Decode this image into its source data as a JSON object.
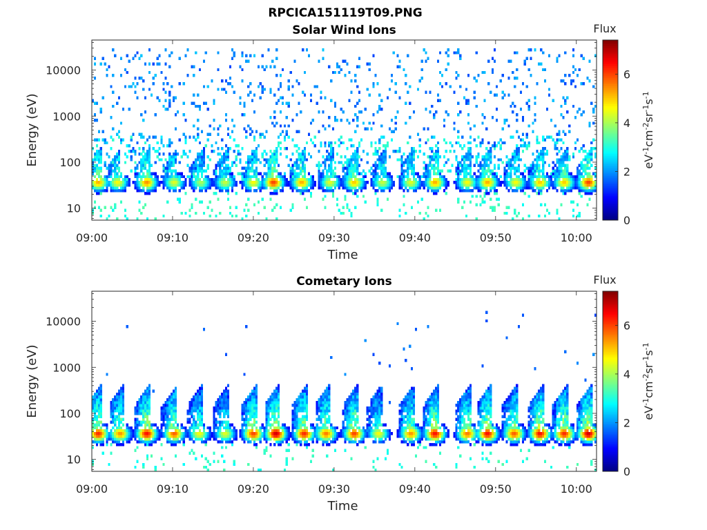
{
  "figure_title": "RPCICA151119T09.PNG",
  "chart_data": [
    {
      "type": "heatmap",
      "title": "Solar Wind Ions",
      "xlabel": "Time",
      "ylabel": "Energy (eV)",
      "x_ticks": [
        "09:00",
        "09:10",
        "09:20",
        "09:30",
        "09:40",
        "09:50",
        "10:00"
      ],
      "x_range_minutes": [
        0,
        62.5
      ],
      "y_scale": "log",
      "y_ticks": [
        "10",
        "100",
        "1000",
        "10000"
      ],
      "y_range": [
        5.5,
        45000
      ],
      "colorbar": {
        "label": "Flux",
        "unit": "eV-1cm-2sr-1s-1",
        "ticks": [
          "0",
          "2",
          "4",
          "6"
        ],
        "range": [
          0,
          7.4
        ],
        "colormap": "jet"
      },
      "peaks": [
        {
          "t": 0.8,
          "amp": 5.2
        },
        {
          "t": 3.2,
          "amp": 4.6
        },
        {
          "t": 6.8,
          "amp": 5.4
        },
        {
          "t": 10.2,
          "amp": 4.4
        },
        {
          "t": 13.5,
          "amp": 4.0
        },
        {
          "t": 16.5,
          "amp": 4.2
        },
        {
          "t": 20.0,
          "amp": 4.6
        },
        {
          "t": 22.5,
          "amp": 6.0
        },
        {
          "t": 26.0,
          "amp": 5.2
        },
        {
          "t": 29.5,
          "amp": 4.4
        },
        {
          "t": 32.5,
          "amp": 5.0
        },
        {
          "t": 36.0,
          "amp": 4.2
        },
        {
          "t": 39.5,
          "amp": 4.4
        },
        {
          "t": 42.5,
          "amp": 5.2
        },
        {
          "t": 46.5,
          "amp": 4.6
        },
        {
          "t": 49.0,
          "amp": 5.2
        },
        {
          "t": 52.5,
          "amp": 4.6
        },
        {
          "t": 55.5,
          "amp": 5.0
        },
        {
          "t": 58.5,
          "amp": 5.0
        },
        {
          "t": 61.5,
          "amp": 6.0
        }
      ],
      "background": "scattered low-flux counts 100–20000 eV",
      "seed": 7
    },
    {
      "type": "heatmap",
      "title": "Cometary Ions",
      "xlabel": "Time",
      "ylabel": "Energy (eV)",
      "x_ticks": [
        "09:00",
        "09:10",
        "09:20",
        "09:30",
        "09:40",
        "09:50",
        "10:00"
      ],
      "x_range_minutes": [
        0,
        62.5
      ],
      "y_scale": "log",
      "y_ticks": [
        "10",
        "100",
        "1000",
        "10000"
      ],
      "y_range": [
        5.5,
        45000
      ],
      "colorbar": {
        "label": "Flux",
        "unit": "eV-1cm-2sr-1s-1",
        "ticks": [
          "0",
          "2",
          "4",
          "6"
        ],
        "range": [
          0,
          7.4
        ],
        "colormap": "jet"
      },
      "peaks": [
        {
          "t": 0.8,
          "amp": 6.2
        },
        {
          "t": 3.5,
          "amp": 5.4
        },
        {
          "t": 6.8,
          "amp": 6.4
        },
        {
          "t": 10.2,
          "amp": 5.8
        },
        {
          "t": 13.3,
          "amp": 4.6
        },
        {
          "t": 16.5,
          "amp": 4.4
        },
        {
          "t": 20.0,
          "amp": 6.0
        },
        {
          "t": 22.8,
          "amp": 6.8
        },
        {
          "t": 26.3,
          "amp": 6.2
        },
        {
          "t": 29.0,
          "amp": 5.6
        },
        {
          "t": 32.5,
          "amp": 6.0
        },
        {
          "t": 35.5,
          "amp": 4.6
        },
        {
          "t": 39.5,
          "amp": 5.4
        },
        {
          "t": 42.5,
          "amp": 6.4
        },
        {
          "t": 46.5,
          "amp": 5.6
        },
        {
          "t": 49.0,
          "amp": 6.4
        },
        {
          "t": 52.3,
          "amp": 5.8
        },
        {
          "t": 55.5,
          "amp": 6.4
        },
        {
          "t": 58.5,
          "amp": 6.2
        },
        {
          "t": 61.5,
          "amp": 6.8
        }
      ],
      "background": "sparse isolated counts up to ~13000 eV",
      "seed": 19
    }
  ]
}
